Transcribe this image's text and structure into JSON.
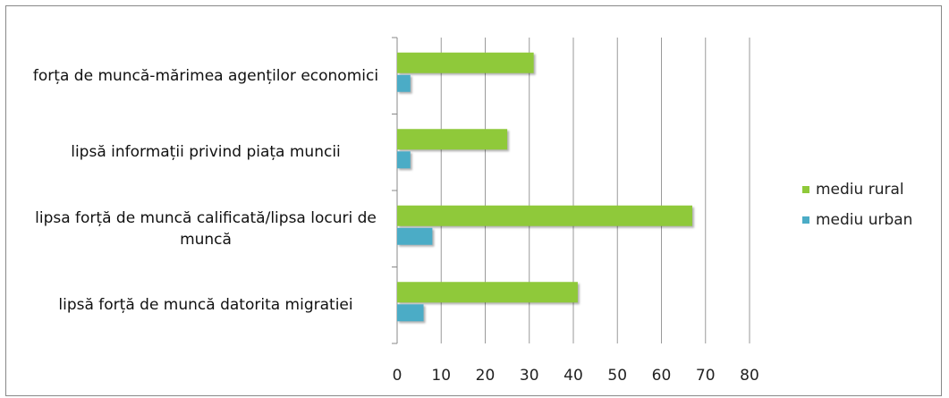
{
  "chart_data": {
    "type": "bar",
    "orientation": "horizontal",
    "categories": [
      "forța de muncă-mărimea agenților economici",
      "lipsă informații privind piața muncii",
      "lipsa forță de muncă calificată/lipsa locuri de muncă",
      "lipsă forță de muncă datorita migratiei"
    ],
    "series": [
      {
        "name": "mediu rural",
        "color": "#8fc93a",
        "values": [
          31,
          25,
          67,
          41
        ]
      },
      {
        "name": "mediu urban",
        "color": "#4bacc6",
        "values": [
          3,
          3,
          8,
          6
        ]
      }
    ],
    "xlim": [
      0,
      80
    ],
    "xticks": [
      0,
      10,
      20,
      30,
      40,
      50,
      60,
      70,
      80
    ],
    "grid": true,
    "legend": "right"
  }
}
